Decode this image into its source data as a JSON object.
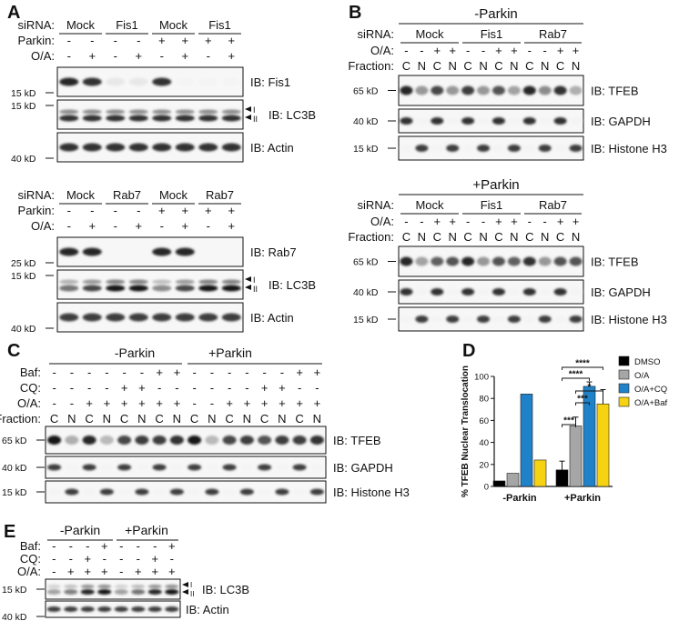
{
  "panels": {
    "A": {
      "letter": "A",
      "top": {
        "headers": [
          {
            "label": "siRNA:",
            "values": [
              "Mock",
              "Fis1",
              "Mock",
              "Fis1"
            ]
          },
          {
            "label": "Parkin:",
            "values": [
              "-",
              "-",
              "-",
              "-",
              "+",
              "+",
              "+",
              "+"
            ]
          },
          {
            "label": "O/A:",
            "values": [
              "-",
              "+",
              "-",
              "+",
              "-",
              "+",
              "-",
              "+"
            ]
          }
        ],
        "blots": [
          {
            "ib": "IB: Fis1",
            "marker": "15 kD"
          },
          {
            "ib": "IB: LC3B",
            "marker": "15 kD",
            "bands": [
              "I",
              "II"
            ]
          },
          {
            "ib": "IB: Actin",
            "marker": "40 kD"
          }
        ]
      },
      "bottom": {
        "headers": [
          {
            "label": "siRNA:",
            "values": [
              "Mock",
              "Rab7",
              "Mock",
              "Rab7"
            ]
          },
          {
            "label": "Parkin:",
            "values": [
              "-",
              "-",
              "-",
              "-",
              "+",
              "+",
              "+",
              "+"
            ]
          },
          {
            "label": "O/A:",
            "values": [
              "-",
              "+",
              "-",
              "+",
              "-",
              "+",
              "-",
              "+"
            ]
          }
        ],
        "blots": [
          {
            "ib": "IB: Rab7",
            "marker": "25 kD"
          },
          {
            "ib": "IB: LC3B",
            "marker": "15 kD",
            "bands": [
              "I",
              "II"
            ]
          },
          {
            "ib": "IB: Actin",
            "marker": "40 kD"
          }
        ]
      }
    },
    "B": {
      "letter": "B",
      "minus": {
        "title": "-Parkin",
        "sirna_label": "siRNA:",
        "sirna": [
          "Mock",
          "Fis1",
          "Rab7"
        ],
        "oa_label": "O/A:",
        "oa": [
          "-",
          "-",
          "+",
          "+",
          "-",
          "-",
          "+",
          "+",
          "-",
          "-",
          "+",
          "+"
        ],
        "fraction_label": "Fraction:",
        "fraction": [
          "C",
          "N",
          "C",
          "N",
          "C",
          "N",
          "C",
          "N",
          "C",
          "N",
          "C",
          "N"
        ],
        "blots": [
          {
            "ib": "IB: TFEB",
            "marker": "65 kD"
          },
          {
            "ib": "IB: GAPDH",
            "marker": "40 kD"
          },
          {
            "ib": "IB: Histone H3",
            "marker": "15 kD"
          }
        ]
      },
      "plus": {
        "title": "+Parkin",
        "sirna_label": "siRNA:",
        "sirna": [
          "Mock",
          "Fis1",
          "Rab7"
        ],
        "oa_label": "O/A:",
        "oa": [
          "-",
          "-",
          "+",
          "+",
          "-",
          "-",
          "+",
          "+",
          "-",
          "-",
          "+",
          "+"
        ],
        "fraction_label": "Fraction:",
        "fraction": [
          "C",
          "N",
          "C",
          "N",
          "C",
          "N",
          "C",
          "N",
          "C",
          "N",
          "C",
          "N"
        ],
        "blots": [
          {
            "ib": "IB: TFEB",
            "marker": "65 kD"
          },
          {
            "ib": "IB: GAPDH",
            "marker": "40 kD"
          },
          {
            "ib": "IB: Histone H3",
            "marker": "15 kD"
          }
        ]
      }
    },
    "C": {
      "letter": "C",
      "groups": [
        "-Parkin",
        "+Parkin"
      ],
      "headers": [
        {
          "label": "Baf:",
          "values": [
            "-",
            "-",
            "-",
            "-",
            "-",
            "-",
            "+",
            "+",
            "-",
            "-",
            "-",
            "-",
            "-",
            "-",
            "+",
            "+"
          ]
        },
        {
          "label": "CQ:",
          "values": [
            "-",
            "-",
            "-",
            "-",
            "+",
            "+",
            "-",
            "-",
            "-",
            "-",
            "-",
            "-",
            "+",
            "+",
            "-",
            "-"
          ]
        },
        {
          "label": "O/A:",
          "values": [
            "-",
            "-",
            "+",
            "+",
            "+",
            "+",
            "+",
            "+",
            "-",
            "-",
            "+",
            "+",
            "+",
            "+",
            "+",
            "+"
          ]
        },
        {
          "label": "Fraction:",
          "values": [
            "C",
            "N",
            "C",
            "N",
            "C",
            "N",
            "C",
            "N",
            "C",
            "N",
            "C",
            "N",
            "C",
            "N",
            "C",
            "N"
          ]
        }
      ],
      "blots": [
        {
          "ib": "IB: TFEB",
          "marker": "65 kD"
        },
        {
          "ib": "IB: GAPDH",
          "marker": "40 kD"
        },
        {
          "ib": "IB: Histone H3",
          "marker": "15 kD"
        }
      ]
    },
    "E": {
      "letter": "E",
      "groups": [
        "-Parkin",
        "+Parkin"
      ],
      "headers": [
        {
          "label": "Baf:",
          "values": [
            "-",
            "-",
            "-",
            "+",
            "-",
            "-",
            "-",
            "+"
          ]
        },
        {
          "label": "CQ:",
          "values": [
            "-",
            "-",
            "+",
            "-",
            "-",
            "-",
            "+",
            "-"
          ]
        },
        {
          "label": "O/A:",
          "values": [
            "-",
            "+",
            "+",
            "+",
            "-",
            "+",
            "+",
            "+"
          ]
        }
      ],
      "blots": [
        {
          "ib": "IB: LC3B",
          "marker": "15 kD",
          "bands": [
            "I",
            "II"
          ]
        },
        {
          "ib": "IB: Actin",
          "marker": "40 kD"
        }
      ]
    }
  },
  "chart_data": {
    "type": "bar",
    "panel_letter": "D",
    "ylabel": "% TFEB Nuclear Translocation",
    "ylim": [
      0,
      100
    ],
    "yticks": [
      0,
      20,
      40,
      60,
      80,
      100
    ],
    "categories": [
      "-Parkin",
      "+Parkin"
    ],
    "legend_position": "top-right",
    "series": [
      {
        "name": "DMSO",
        "color": "#000000",
        "values": [
          5,
          15
        ],
        "errors": [
          0,
          8
        ]
      },
      {
        "name": "O/A",
        "color": "#a6a6a6",
        "values": [
          12,
          55
        ],
        "errors": [
          0,
          8
        ]
      },
      {
        "name": "O/A+CQ",
        "color": "#1f82c8",
        "values": [
          84,
          91
        ],
        "errors": [
          0,
          4
        ]
      },
      {
        "name": "O/A+Baf",
        "color": "#f5d312",
        "values": [
          24,
          75
        ],
        "errors": [
          0,
          13
        ]
      }
    ],
    "significance": [
      {
        "label": "****",
        "pair": [
          "DMSO",
          "O/A+Baf"
        ]
      },
      {
        "label": "****",
        "pair": [
          "DMSO",
          "O/A+CQ"
        ]
      },
      {
        "label": "*",
        "pair": [
          "O/A",
          "O/A+Baf"
        ]
      },
      {
        "label": "***",
        "pair": [
          "O/A",
          "O/A+CQ"
        ]
      },
      {
        "label": "***",
        "pair": [
          "DMSO",
          "O/A"
        ]
      }
    ]
  }
}
